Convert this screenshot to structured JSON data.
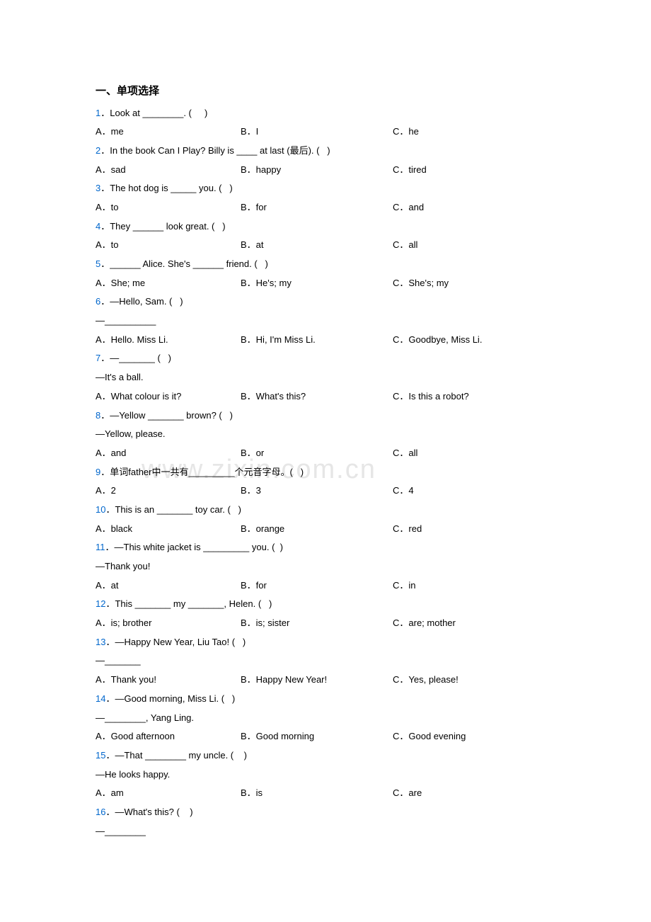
{
  "watermark": "www.zixin.com.cn",
  "section_title": "一、单项选择",
  "questions": [
    {
      "num": "1",
      "text": "．Look at ________. (     )",
      "opts": {
        "a": "A．me",
        "b": "B．I",
        "c": "C．he"
      }
    },
    {
      "num": "2",
      "text": "．In the book Can I Play? Billy is ____ at last (最后). (   )",
      "opts": {
        "a": "A．sad",
        "b": "B．happy",
        "c": "C．tired"
      }
    },
    {
      "num": "3",
      "text": "．The hot dog is _____ you. (   )",
      "opts": {
        "a": "A．to",
        "b": "B．for",
        "c": "C．and"
      }
    },
    {
      "num": "4",
      "text": "．They ______ look great. (   )",
      "opts": {
        "a": "A．to",
        "b": "B．at",
        "c": "C．all"
      }
    },
    {
      "num": "5",
      "text": "．______ Alice. She's ______ friend. (   )",
      "opts": {
        "a": "A．She; me",
        "b": "B．He's; my",
        "c": "C．She's; my"
      }
    },
    {
      "num": "6",
      "text": "．—Hello, Sam. (   )",
      "sub": "—__________",
      "opts": {
        "a": "A．Hello. Miss Li.",
        "b": "B．Hi, I'm Miss Li.",
        "c": "C．Goodbye, Miss Li."
      }
    },
    {
      "num": "7",
      "text": "．—_______ (   )",
      "sub": "—It's a ball.",
      "opts": {
        "a": "A．What colour is it?",
        "b": "B．What's this?",
        "c": "C．Is this a robot?"
      }
    },
    {
      "num": "8",
      "text": "．—Yellow _______ brown? (   )",
      "sub": "—Yellow, please.",
      "opts": {
        "a": "A．and",
        "b": "B．or",
        "c": "C．all"
      }
    },
    {
      "num": "9",
      "text": "．单词father中一共有_________个元音字母。(   )",
      "opts": {
        "a": "A．2",
        "b": "B．3",
        "c": "C．4"
      }
    },
    {
      "num": "10",
      "text": "．This is an _______ toy car. (   )",
      "opts": {
        "a": "A．black",
        "b": "B．orange",
        "c": "C．red"
      }
    },
    {
      "num": "11",
      "text": "．—This white jacket is _________ you. (  )",
      "sub": "—Thank you!",
      "opts": {
        "a": "A．at",
        "b": "B．for",
        "c": "C．in"
      }
    },
    {
      "num": "12",
      "text": "．This _______ my _______, Helen. (   )",
      "opts": {
        "a": "A．is; brother",
        "b": "B．is; sister",
        "c": "C．are; mother"
      }
    },
    {
      "num": "13",
      "text": "．—Happy New Year, Liu Tao! (   )",
      "sub": "—_______",
      "opts": {
        "a": "A．Thank you!",
        "b": "B．Happy New Year!",
        "c": "C．Yes, please!"
      }
    },
    {
      "num": "14",
      "text": "．—Good morning, Miss Li. (   )",
      "sub": "—________, Yang Ling.",
      "opts": {
        "a": "A．Good afternoon",
        "b": "B．Good morning",
        "c": "C．Good evening"
      }
    },
    {
      "num": "15",
      "text": "．—That ________ my uncle. (    )",
      "sub": "—He looks happy.",
      "opts": {
        "a": "A．am",
        "b": "B．is",
        "c": "C．are"
      }
    },
    {
      "num": "16",
      "text": "．—What's this? (    )",
      "sub": "—________"
    }
  ]
}
